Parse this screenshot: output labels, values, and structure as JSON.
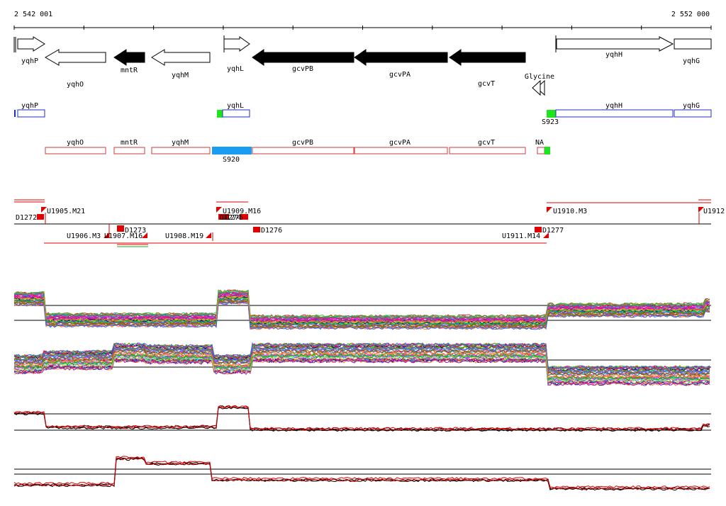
{
  "ruler": {
    "start_label": "2 542 001",
    "end_label": "2 552 000"
  },
  "genes": [
    {
      "name": "yqhP",
      "strand": "+"
    },
    {
      "name": "yqhO",
      "strand": "-"
    },
    {
      "name": "mntR",
      "strand": "-"
    },
    {
      "name": "yqhM",
      "strand": "-"
    },
    {
      "name": "yqhL",
      "strand": "+"
    },
    {
      "name": "gcvPB",
      "strand": "-"
    },
    {
      "name": "gcvPA",
      "strand": "-"
    },
    {
      "name": "gcvT",
      "strand": "-"
    },
    {
      "name": "yqhH",
      "strand": "+"
    },
    {
      "name": "yqhG",
      "strand": "+"
    }
  ],
  "riboswitch_label": "Glycine",
  "forward_transcripts": [
    "yqhP",
    "yqhL",
    "yqhH",
    "yqhG"
  ],
  "forward_segment_labels": [
    "S923"
  ],
  "reverse_transcripts": [
    "yqhO",
    "mntR",
    "yqhM",
    "gcvPB",
    "gcvPA",
    "gcvT",
    "NA"
  ],
  "reverse_segment_labels": [
    "S920"
  ],
  "feature_labels": {
    "upper": [
      "D1272",
      "U1905.M21",
      "U1909.M16",
      "D1274",
      "D1275",
      "U1910.M3",
      "U1912"
    ],
    "lower": [
      "U1906.M3",
      "U1907.M16",
      "D1273",
      "U1908.M19",
      "D1276",
      "U1911.M14",
      "D1277"
    ]
  },
  "colors": {
    "gene_colored": "#000000",
    "forward_box": "#1f2fbf",
    "reverse_box": "#d23a3a",
    "green_marker": "#1ee61e",
    "blue_segment": "#1a9cf0",
    "feature_red": "#e00000",
    "track_black": "#000000",
    "track_red": "#e00000"
  }
}
